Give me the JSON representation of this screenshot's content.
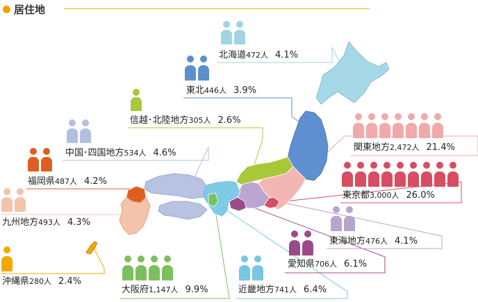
{
  "header": {
    "title": "居住地"
  },
  "colors": {
    "accent": "#f0a500"
  },
  "regions": [
    {
      "id": "hokkaido",
      "name": "北海道",
      "count": "472人",
      "pct": "4.1%",
      "figures": 2,
      "color": "#9fd4e4"
    },
    {
      "id": "tohoku",
      "name": "東北",
      "count": "446人",
      "pct": "3.9%",
      "figures": 2,
      "color": "#5b8fcf"
    },
    {
      "id": "shinetsu",
      "name": "信越･北陸地方",
      "count": "305人",
      "pct": "2.6%",
      "figures": 1,
      "color": "#a8c83a"
    },
    {
      "id": "chugoku",
      "name": "中国･四国地方",
      "count": "534人",
      "pct": "4.6%",
      "figures": 2,
      "color": "#b3bfe0"
    },
    {
      "id": "fukuoka",
      "name": "福岡県",
      "count": "487人",
      "pct": "4.2%",
      "figures": 2,
      "color": "#de5e1f"
    },
    {
      "id": "kyushu",
      "name": "九州地方",
      "count": "493人",
      "pct": "4.3%",
      "figures": 2,
      "color": "#f3c3aa"
    },
    {
      "id": "okinawa",
      "name": "沖縄県",
      "count": "280人",
      "pct": "2.4%",
      "figures": 1,
      "color": "#f3a800"
    },
    {
      "id": "osaka",
      "name": "大阪府",
      "count": "1,147人",
      "pct": "9.9%",
      "figures": 4,
      "color": "#7dbf5e"
    },
    {
      "id": "kinki",
      "name": "近畿地方",
      "count": "741人",
      "pct": "6.4%",
      "figures": 2,
      "color": "#77c7e3"
    },
    {
      "id": "aichi",
      "name": "愛知県",
      "count": "706人",
      "pct": "6.1%",
      "figures": 2,
      "color": "#9a4b87"
    },
    {
      "id": "tokai",
      "name": "東海地方",
      "count": "476人",
      "pct": "4.1%",
      "figures": 2,
      "color": "#b9a3cf"
    },
    {
      "id": "tokyo",
      "name": "東京都",
      "count": "3,000人",
      "pct": "26.0%",
      "figures": 9,
      "color": "#d84d63"
    },
    {
      "id": "kanto",
      "name": "関東地方",
      "count": "2,472人",
      "pct": "21.4%",
      "figures": 7,
      "color": "#f0aaa9"
    }
  ]
}
